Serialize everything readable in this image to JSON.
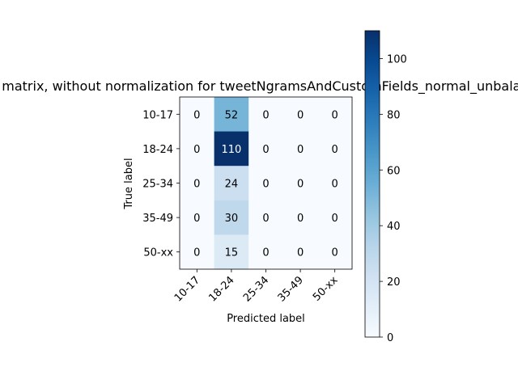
{
  "chart_data": {
    "type": "heatmap",
    "title": "Confusion matrix, without normalization for tweetNgramsAndCustomFields_normal_unbalanced",
    "xlabel": "Predicted label",
    "ylabel": "True label",
    "x_categories": [
      "10-17",
      "18-24",
      "25-34",
      "35-49",
      "50-xx"
    ],
    "y_categories": [
      "10-17",
      "18-24",
      "25-34",
      "35-49",
      "50-xx"
    ],
    "values": [
      [
        0,
        52,
        0,
        0,
        0
      ],
      [
        0,
        110,
        0,
        0,
        0
      ],
      [
        0,
        24,
        0,
        0,
        0
      ],
      [
        0,
        30,
        0,
        0,
        0
      ],
      [
        0,
        15,
        0,
        0,
        0
      ]
    ],
    "colormap": "Blues",
    "color_range": [
      0,
      110
    ],
    "colorbar_ticks": [
      0,
      20,
      40,
      60,
      80,
      100
    ],
    "colors": {
      "low": "#f7fbff",
      "high": "#08306b"
    }
  }
}
